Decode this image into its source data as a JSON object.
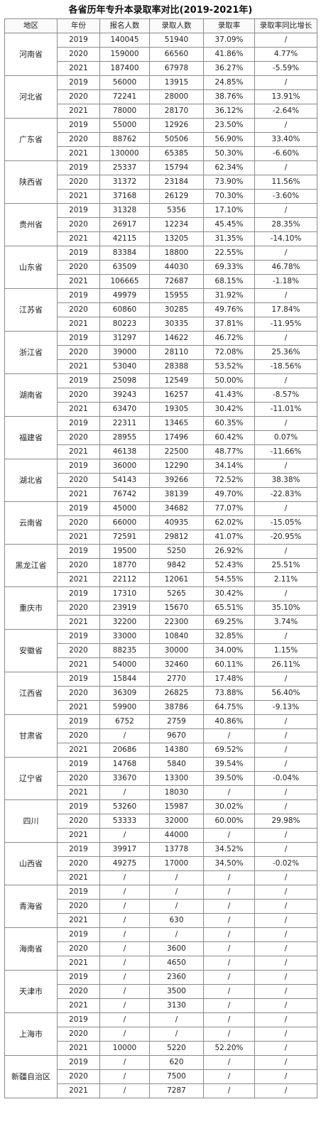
{
  "title": "各省历年专升本录取率对比(2019-2021年)",
  "headers": [
    "地区",
    "年份",
    "报名人数",
    "录取人数",
    "录取率",
    "录取率同比增长"
  ],
  "regions": [
    {
      "name": "河南省",
      "rows": [
        {
          "year": "2019",
          "applicants": "140045",
          "admitted": "51940",
          "rate": "37.09%",
          "growth": "/"
        },
        {
          "year": "2020",
          "applicants": "159000",
          "admitted": "66560",
          "rate": "41.86%",
          "growth": "4.77%"
        },
        {
          "year": "2021",
          "applicants": "187400",
          "admitted": "67978",
          "rate": "36.27%",
          "growth": "-5.59%"
        }
      ]
    },
    {
      "name": "河北省",
      "rows": [
        {
          "year": "2019",
          "applicants": "56000",
          "admitted": "13915",
          "rate": "24.85%",
          "growth": "/"
        },
        {
          "year": "2020",
          "applicants": "72241",
          "admitted": "28000",
          "rate": "38.76%",
          "growth": "13.91%"
        },
        {
          "year": "2021",
          "applicants": "78000",
          "admitted": "28170",
          "rate": "36.12%",
          "growth": "-2.64%"
        }
      ]
    },
    {
      "name": "广东省",
      "rows": [
        {
          "year": "2019",
          "applicants": "55000",
          "admitted": "12926",
          "rate": "23.50%",
          "growth": "/"
        },
        {
          "year": "2020",
          "applicants": "88762",
          "admitted": "50506",
          "rate": "56.90%",
          "growth": "33.40%"
        },
        {
          "year": "2021",
          "applicants": "130000",
          "admitted": "65385",
          "rate": "50.30%",
          "growth": "-6.60%"
        }
      ]
    },
    {
      "name": "陕西省",
      "rows": [
        {
          "year": "2019",
          "applicants": "25337",
          "admitted": "15794",
          "rate": "62.34%",
          "growth": "/"
        },
        {
          "year": "2020",
          "applicants": "31372",
          "admitted": "23184",
          "rate": "73.90%",
          "growth": "11.56%"
        },
        {
          "year": "2021",
          "applicants": "37168",
          "admitted": "26129",
          "rate": "70.30%",
          "growth": "-3.60%"
        }
      ]
    },
    {
      "name": "贵州省",
      "rows": [
        {
          "year": "2019",
          "applicants": "31328",
          "admitted": "5356",
          "rate": "17.10%",
          "growth": "/"
        },
        {
          "year": "2020",
          "applicants": "26917",
          "admitted": "12234",
          "rate": "45.45%",
          "growth": "28.35%"
        },
        {
          "year": "2021",
          "applicants": "42115",
          "admitted": "13205",
          "rate": "31.35%",
          "growth": "-14.10%"
        }
      ]
    },
    {
      "name": "山东省",
      "rows": [
        {
          "year": "2019",
          "applicants": "83384",
          "admitted": "18800",
          "rate": "22.55%",
          "growth": "/"
        },
        {
          "year": "2020",
          "applicants": "63509",
          "admitted": "44030",
          "rate": "69.33%",
          "growth": "46.78%"
        },
        {
          "year": "2021",
          "applicants": "106665",
          "admitted": "72687",
          "rate": "68.15%",
          "growth": "-1.18%"
        }
      ]
    },
    {
      "name": "江苏省",
      "rows": [
        {
          "year": "2019",
          "applicants": "49979",
          "admitted": "15955",
          "rate": "31.92%",
          "growth": "/"
        },
        {
          "year": "2020",
          "applicants": "60860",
          "admitted": "30285",
          "rate": "49.76%",
          "growth": "17.84%"
        },
        {
          "year": "2021",
          "applicants": "80223",
          "admitted": "30335",
          "rate": "37.81%",
          "growth": "-11.95%"
        }
      ]
    },
    {
      "name": "浙江省",
      "rows": [
        {
          "year": "2019",
          "applicants": "31297",
          "admitted": "14622",
          "rate": "46.72%",
          "growth": "/"
        },
        {
          "year": "2020",
          "applicants": "39000",
          "admitted": "28110",
          "rate": "72.08%",
          "growth": "25.36%"
        },
        {
          "year": "2021",
          "applicants": "53040",
          "admitted": "28388",
          "rate": "53.52%",
          "growth": "-18.56%"
        }
      ]
    },
    {
      "name": "湖南省",
      "rows": [
        {
          "year": "2019",
          "applicants": "25098",
          "admitted": "12549",
          "rate": "50.00%",
          "growth": "/"
        },
        {
          "year": "2020",
          "applicants": "39243",
          "admitted": "16257",
          "rate": "41.43%",
          "growth": "-8.57%"
        },
        {
          "year": "2021",
          "applicants": "63470",
          "admitted": "19305",
          "rate": "30.42%",
          "growth": "-11.01%"
        }
      ]
    },
    {
      "name": "福建省",
      "rows": [
        {
          "year": "2019",
          "applicants": "22311",
          "admitted": "13465",
          "rate": "60.35%",
          "growth": "/"
        },
        {
          "year": "2020",
          "applicants": "28955",
          "admitted": "17496",
          "rate": "60.42%",
          "growth": "0.07%"
        },
        {
          "year": "2021",
          "applicants": "46138",
          "admitted": "22500",
          "rate": "48.77%",
          "growth": "-11.66%"
        }
      ]
    },
    {
      "name": "湖北省",
      "rows": [
        {
          "year": "2019",
          "applicants": "36000",
          "admitted": "12290",
          "rate": "34.14%",
          "growth": "/"
        },
        {
          "year": "2020",
          "applicants": "54143",
          "admitted": "39266",
          "rate": "72.52%",
          "growth": "38.38%"
        },
        {
          "year": "2021",
          "applicants": "76742",
          "admitted": "38139",
          "rate": "49.70%",
          "growth": "-22.83%"
        }
      ]
    },
    {
      "name": "云南省",
      "rows": [
        {
          "year": "2019",
          "applicants": "45000",
          "admitted": "34682",
          "rate": "77.07%",
          "growth": "/"
        },
        {
          "year": "2020",
          "applicants": "66000",
          "admitted": "40935",
          "rate": "62.02%",
          "growth": "-15.05%"
        },
        {
          "year": "2021",
          "applicants": "72591",
          "admitted": "29812",
          "rate": "41.07%",
          "growth": "-20.95%"
        }
      ]
    },
    {
      "name": "黑龙江省",
      "rows": [
        {
          "year": "2019",
          "applicants": "19500",
          "admitted": "5250",
          "rate": "26.92%",
          "growth": "/"
        },
        {
          "year": "2020",
          "applicants": "18770",
          "admitted": "9842",
          "rate": "52.43%",
          "growth": "25.51%"
        },
        {
          "year": "2021",
          "applicants": "22112",
          "admitted": "12061",
          "rate": "54.55%",
          "growth": "2.11%"
        }
      ]
    },
    {
      "name": "重庆市",
      "rows": [
        {
          "year": "2019",
          "applicants": "17310",
          "admitted": "5265",
          "rate": "30.42%",
          "growth": "/"
        },
        {
          "year": "2020",
          "applicants": "23919",
          "admitted": "15670",
          "rate": "65.51%",
          "growth": "35.10%"
        },
        {
          "year": "2021",
          "applicants": "32200",
          "admitted": "22300",
          "rate": "69.25%",
          "growth": "3.74%"
        }
      ]
    },
    {
      "name": "安徽省",
      "rows": [
        {
          "year": "2019",
          "applicants": "33000",
          "admitted": "10840",
          "rate": "32.85%",
          "growth": "/"
        },
        {
          "year": "2020",
          "applicants": "88235",
          "admitted": "30000",
          "rate": "34.00%",
          "growth": "1.15%"
        },
        {
          "year": "2021",
          "applicants": "54000",
          "admitted": "32460",
          "rate": "60.11%",
          "growth": "26.11%"
        }
      ]
    },
    {
      "name": "江西省",
      "rows": [
        {
          "year": "2019",
          "applicants": "15844",
          "admitted": "2770",
          "rate": "17.48%",
          "growth": "/"
        },
        {
          "year": "2020",
          "applicants": "36309",
          "admitted": "26825",
          "rate": "73.88%",
          "growth": "56.40%"
        },
        {
          "year": "2021",
          "applicants": "59900",
          "admitted": "38786",
          "rate": "64.75%",
          "growth": "-9.13%"
        }
      ]
    },
    {
      "name": "甘肃省",
      "rows": [
        {
          "year": "2019",
          "applicants": "6752",
          "admitted": "2759",
          "rate": "40.86%",
          "growth": "/"
        },
        {
          "year": "2020",
          "applicants": "/",
          "admitted": "9670",
          "rate": "/",
          "growth": "/"
        },
        {
          "year": "2021",
          "applicants": "20686",
          "admitted": "14380",
          "rate": "69.52%",
          "growth": "/"
        }
      ]
    },
    {
      "name": "辽宁省",
      "rows": [
        {
          "year": "2019",
          "applicants": "14768",
          "admitted": "5840",
          "rate": "39.54%",
          "growth": "/"
        },
        {
          "year": "2020",
          "applicants": "33670",
          "admitted": "13300",
          "rate": "39.50%",
          "growth": "-0.04%"
        },
        {
          "year": "2021",
          "applicants": "/",
          "admitted": "18030",
          "rate": "/",
          "growth": "/"
        }
      ]
    },
    {
      "name": "四川",
      "rows": [
        {
          "year": "2019",
          "applicants": "53260",
          "admitted": "15987",
          "rate": "30.02%",
          "growth": "/"
        },
        {
          "year": "2020",
          "applicants": "53333",
          "admitted": "32000",
          "rate": "60.00%",
          "growth": "29.98%"
        },
        {
          "year": "2021",
          "applicants": "/",
          "admitted": "44000",
          "rate": "/",
          "growth": "/"
        }
      ]
    },
    {
      "name": "山西省",
      "rows": [
        {
          "year": "2019",
          "applicants": "39917",
          "admitted": "13778",
          "rate": "34.52%",
          "growth": "/"
        },
        {
          "year": "2020",
          "applicants": "49275",
          "admitted": "17000",
          "rate": "34.50%",
          "growth": "-0.02%"
        },
        {
          "year": "2021",
          "applicants": "/",
          "admitted": "/",
          "rate": "/",
          "growth": "/"
        }
      ]
    },
    {
      "name": "青海省",
      "rows": [
        {
          "year": "2019",
          "applicants": "/",
          "admitted": "/",
          "rate": "/",
          "growth": "/"
        },
        {
          "year": "2020",
          "applicants": "/",
          "admitted": "/",
          "rate": "/",
          "growth": "/"
        },
        {
          "year": "2021",
          "applicants": "/",
          "admitted": "630",
          "rate": "/",
          "growth": "/"
        }
      ]
    },
    {
      "name": "海南省",
      "rows": [
        {
          "year": "2019",
          "applicants": "/",
          "admitted": "/",
          "rate": "/",
          "growth": "/"
        },
        {
          "year": "2020",
          "applicants": "/",
          "admitted": "3600",
          "rate": "/",
          "growth": "/"
        },
        {
          "year": "2021",
          "applicants": "/",
          "admitted": "4650",
          "rate": "/",
          "growth": "/"
        }
      ]
    },
    {
      "name": "天津市",
      "rows": [
        {
          "year": "2019",
          "applicants": "/",
          "admitted": "2360",
          "rate": "/",
          "growth": "/"
        },
        {
          "year": "2020",
          "applicants": "/",
          "admitted": "3500",
          "rate": "/",
          "growth": "/"
        },
        {
          "year": "2021",
          "applicants": "/",
          "admitted": "3130",
          "rate": "/",
          "growth": "/"
        }
      ]
    },
    {
      "name": "上海市",
      "rows": [
        {
          "year": "2019",
          "applicants": "/",
          "admitted": "/",
          "rate": "/",
          "growth": "/"
        },
        {
          "year": "2020",
          "applicants": "/",
          "admitted": "/",
          "rate": "/",
          "growth": "/"
        },
        {
          "year": "2021",
          "applicants": "10000",
          "admitted": "5220",
          "rate": "52.20%",
          "growth": "/"
        }
      ]
    },
    {
      "name": "新疆自治区",
      "rows": [
        {
          "year": "2019",
          "applicants": "/",
          "admitted": "620",
          "rate": "/",
          "growth": "/"
        },
        {
          "year": "2020",
          "applicants": "/",
          "admitted": "7500",
          "rate": "/",
          "growth": "/"
        },
        {
          "year": "2021",
          "applicants": "/",
          "admitted": "7287",
          "rate": "/",
          "growth": "/"
        }
      ]
    }
  ]
}
